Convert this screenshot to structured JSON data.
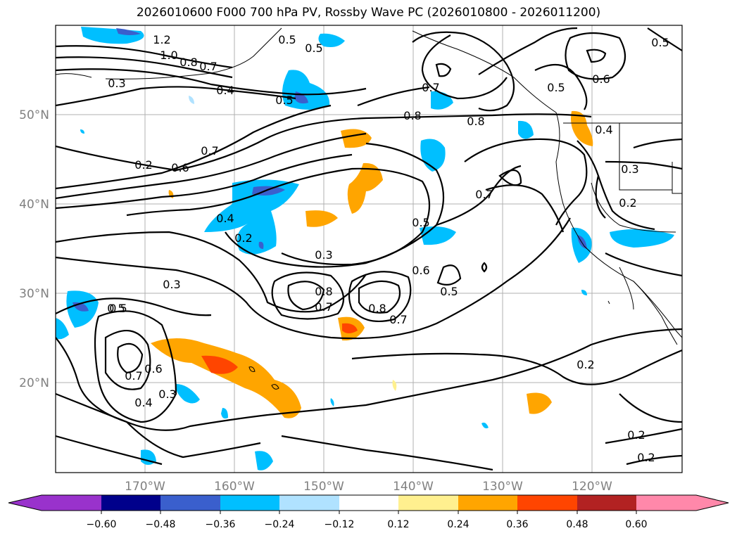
{
  "title": "2026010600 F000 700 hPa PV, Rossby Wave PC (2026010800 - 2026011200)",
  "map": {
    "lat_ticks": [
      "50°N",
      "40°N",
      "30°N",
      "20°N"
    ],
    "lon_ticks": [
      "170°W",
      "160°W",
      "150°W",
      "140°W",
      "130°W",
      "120°W"
    ],
    "contour_labels": [
      "1.2",
      "1.0",
      "0.8",
      "0.7",
      "0.5",
      "0.3",
      "0.4",
      "0.5",
      "0.5",
      "0.7",
      "0.8",
      "0.8",
      "0.5",
      "0.6",
      "0.5",
      "0.2",
      "0.6",
      "0.7",
      "0.4",
      "0.3",
      "0.7",
      "0.2",
      "0.4",
      "0.2",
      "0.5",
      "0.3",
      "0.5",
      "0.6",
      "0.5",
      "0.8",
      "0.7",
      "0.8",
      "0.7",
      "0.3",
      "0.5",
      "0.7",
      "0.6",
      "0.4",
      "0.3",
      "0.2",
      "0.2",
      "0.2"
    ]
  },
  "colorbar": {
    "ticks": [
      "−0.60",
      "−0.48",
      "−0.36",
      "−0.24",
      "−0.12",
      "0.12",
      "0.24",
      "0.36",
      "0.48",
      "0.60"
    ],
    "colors": [
      "#9932cc",
      "#00008b",
      "#3a5fcd",
      "#00bfff",
      "#b0e2ff",
      "#ffffff",
      "#fff08f",
      "#ffa500",
      "#ff4500",
      "#b22222",
      "#ff88aa"
    ]
  }
}
